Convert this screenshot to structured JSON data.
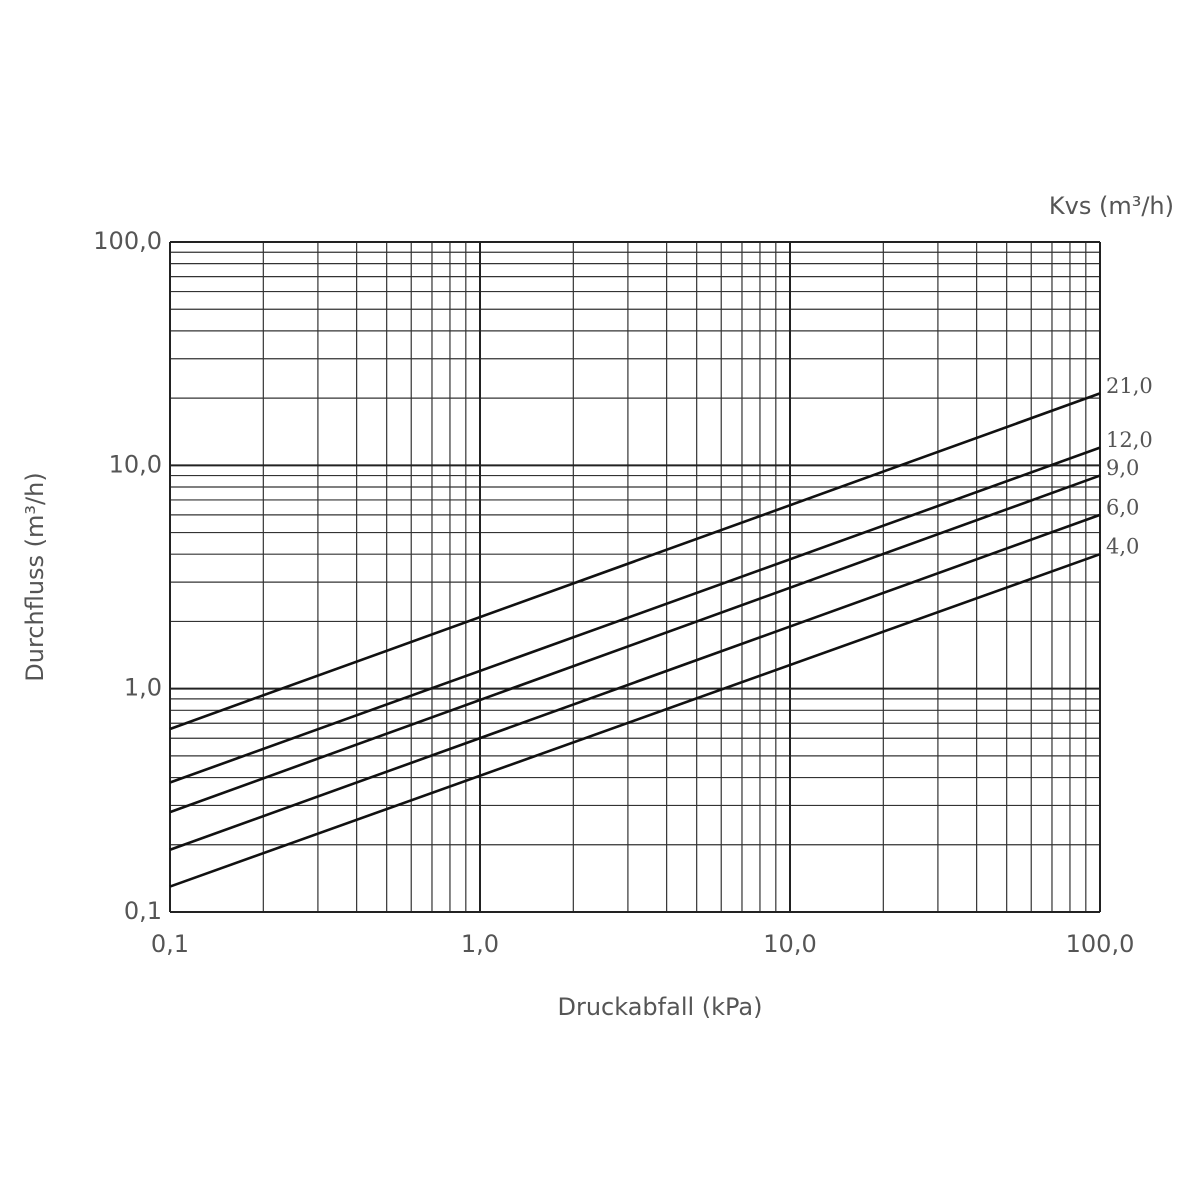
{
  "chart_data": {
    "type": "line",
    "legend_title": "Kvs (m³/h)",
    "xlabel": "Druckabfall (kPa)",
    "ylabel": "Durchfluss (m³/h)",
    "log_x": true,
    "log_y": true,
    "grid": true,
    "x": [
      0.1,
      100
    ],
    "xlim": [
      0.1,
      100
    ],
    "ylim": [
      0.1,
      100
    ],
    "xticks": [
      {
        "value": 0.1,
        "label": "0,1"
      },
      {
        "value": 1,
        "label": "1,0"
      },
      {
        "value": 10,
        "label": "10,0"
      },
      {
        "value": 100,
        "label": "100,0"
      }
    ],
    "yticks": [
      {
        "value": 0.1,
        "label": "0,1"
      },
      {
        "value": 1,
        "label": "1,0"
      },
      {
        "value": 10,
        "label": "10,0"
      },
      {
        "value": 100,
        "label": "100,0"
      }
    ],
    "series": [
      {
        "name": "21,0",
        "color": "#111111",
        "values": [
          0.66,
          21
        ]
      },
      {
        "name": "12,0",
        "color": "#111111",
        "values": [
          0.38,
          12
        ]
      },
      {
        "name": "9,0",
        "color": "#111111",
        "values": [
          0.28,
          9
        ]
      },
      {
        "name": "6,0",
        "color": "#111111",
        "values": [
          0.19,
          6
        ]
      },
      {
        "name": "4,0",
        "color": "#111111",
        "values": [
          0.13,
          4
        ]
      }
    ]
  }
}
